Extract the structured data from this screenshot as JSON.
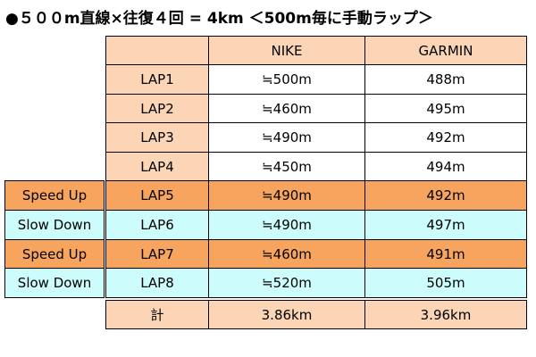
{
  "title": "●５００m直線×往復４回 = 4km ＜500m毎に手動ラップ＞",
  "table": {
    "header": [
      "NIKE",
      "GARMIN"
    ],
    "rows": [
      {
        "lap": "LAP1",
        "nike": "≒500m",
        "garmin": "488m"
      },
      {
        "lap": "LAP2",
        "nike": "≒460m",
        "garmin": "495m"
      },
      {
        "lap": "LAP3",
        "nike": "≒490m",
        "garmin": "492m"
      },
      {
        "lap": "LAP4",
        "nike": "≒450m",
        "garmin": "494m"
      },
      {
        "note": "Speed Up",
        "kind": "speed",
        "lap": "LAP5",
        "nike": "≒490m",
        "garmin": "492m"
      },
      {
        "note": "Slow Down",
        "kind": "slow",
        "lap": "LAP6",
        "nike": "≒490m",
        "garmin": "497m"
      },
      {
        "note": "Speed Up",
        "kind": "speed",
        "lap": "LAP7",
        "nike": "≒460m",
        "garmin": "491m"
      },
      {
        "note": "Slow Down",
        "kind": "slow",
        "lap": "LAP8",
        "nike": "≒520m",
        "garmin": "505m"
      }
    ],
    "total": {
      "lap": "計",
      "nike": "3.86km",
      "garmin": "3.96km"
    }
  }
}
